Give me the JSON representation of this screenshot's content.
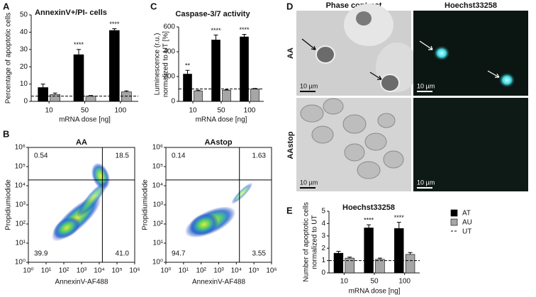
{
  "chart_data": [
    {
      "type": "bar",
      "panel": "A",
      "title": "AnnexinV+/PI- cells",
      "y_label": "Percentage of apoptotic cells",
      "x_label": "mRNA dose [ng]",
      "categories": [
        "10",
        "50",
        "100"
      ],
      "series": [
        {
          "color": "#000000",
          "values": [
            8,
            27,
            41
          ],
          "errors": [
            2,
            3,
            1
          ],
          "significance": [
            null,
            "****",
            "****"
          ]
        },
        {
          "color": "#a6a6a6",
          "values": [
            4,
            3,
            5.5
          ],
          "errors": [
            0.8,
            0.4,
            0.6
          ],
          "significance": [
            null,
            null,
            null
          ]
        }
      ],
      "reference_line": 3,
      "ylim": [
        0,
        50
      ],
      "yticks": [
        0,
        10,
        20,
        30,
        40,
        50
      ]
    },
    {
      "type": "bar",
      "panel": "C",
      "title": "Caspase-3/7 activity",
      "y_label": [
        "Luminescence (r.u.)",
        "normalized to UT [%]"
      ],
      "x_label": "mRNA dose [ng]",
      "categories": [
        "10",
        "50",
        "100"
      ],
      "series": [
        {
          "color": "#000000",
          "values": [
            220,
            495,
            520
          ],
          "errors": [
            30,
            40,
            20
          ],
          "significance": [
            "**",
            "****",
            "****"
          ]
        },
        {
          "color": "#a6a6a6",
          "values": [
            85,
            90,
            100
          ],
          "errors": [
            5,
            5,
            4
          ],
          "significance": [
            null,
            null,
            null
          ]
        }
      ],
      "reference_line": 100,
      "ylim": [
        0,
        600
      ],
      "yticks": [
        0,
        200,
        400,
        600
      ]
    },
    {
      "type": "bar",
      "panel": "E",
      "title": "Hoechst33258",
      "y_label": [
        "Number of apoptotic cells",
        "normalized to UT"
      ],
      "x_label": "mRNA dose [ng]",
      "categories": [
        "10",
        "50",
        "100"
      ],
      "series": [
        {
          "name": "AT",
          "color": "#000000",
          "values": [
            1.6,
            3.65,
            3.6
          ],
          "errors": [
            0.15,
            0.25,
            0.5
          ],
          "significance": [
            null,
            "****",
            "****"
          ]
        },
        {
          "name": "AU",
          "color": "#a6a6a6",
          "values": [
            1.2,
            1.1,
            1.5
          ],
          "errors": [
            0.08,
            0.1,
            0.15
          ],
          "significance": [
            null,
            null,
            null
          ]
        }
      ],
      "reference_line": {
        "name": "UT",
        "value": 1
      },
      "ylim": [
        0,
        5
      ],
      "yticks": [
        0,
        1,
        2,
        3,
        4,
        5
      ]
    },
    {
      "type": "flow",
      "panel": "B",
      "title": "AA",
      "x_label": "AnnexinV-AF488",
      "y_label": "Propidiumiodide",
      "log_scale": true,
      "quadrant_gate": {
        "x": 15000,
        "y": 20000
      },
      "quadrants": {
        "upper_left": 0.54,
        "upper_right": 18.5,
        "lower_left": 39.9,
        "lower_right": {
          "value": 41,
          "label": "41.0"
        }
      },
      "xlim": [
        1,
        1000000
      ],
      "ylim": [
        1,
        1000000
      ],
      "xticks": [
        {
          "value": 1,
          "label": "10⁰"
        },
        {
          "value": 10,
          "label": "10¹"
        },
        {
          "value": 100,
          "label": "10²"
        },
        {
          "value": 1000,
          "label": "10³"
        },
        {
          "value": 10000,
          "label": "10⁴"
        },
        {
          "value": 100000,
          "label": "10⁵"
        },
        {
          "value": 1000000,
          "label": "10⁶"
        }
      ],
      "yticks": [
        {
          "value": 1,
          "label": "10⁰"
        },
        {
          "value": 10,
          "label": "10¹"
        },
        {
          "value": 100,
          "label": "10²"
        },
        {
          "value": 1000,
          "label": "10³"
        },
        {
          "value": 10000,
          "label": "10⁴"
        },
        {
          "value": 100000,
          "label": "10⁵"
        },
        {
          "value": 1000000,
          "label": "10⁶"
        }
      ]
    },
    {
      "type": "flow",
      "title": "AAstop",
      "x_label": "AnnexinV-AF488",
      "y_label": "Propidiumiodide",
      "log_scale": true,
      "quadrant_gate": {
        "x": 15000,
        "y": 20000
      },
      "quadrants": {
        "upper_left": 0.14,
        "upper_right": 1.63,
        "lower_left": 94.7,
        "lower_right": 3.55
      },
      "xlim": [
        1,
        1000000
      ],
      "ylim": [
        1,
        1000000
      ],
      "xticks": [
        {
          "value": 1,
          "label": "10⁰"
        },
        {
          "value": 10,
          "label": "10¹"
        },
        {
          "value": 100,
          "label": "10²"
        },
        {
          "value": 1000,
          "label": "10³"
        },
        {
          "value": 10000,
          "label": "10⁴"
        },
        {
          "value": 100000,
          "label": "10⁵"
        },
        {
          "value": 1000000,
          "label": "10⁶"
        }
      ],
      "yticks": [
        {
          "value": 1,
          "label": "10⁰"
        },
        {
          "value": 10,
          "label": "10¹"
        },
        {
          "value": 100,
          "label": "10²"
        },
        {
          "value": 1000,
          "label": "10³"
        },
        {
          "value": 10000,
          "label": "10⁴"
        },
        {
          "value": 100000,
          "label": "10⁵"
        },
        {
          "value": 1000000,
          "label": "10⁶"
        }
      ]
    }
  ],
  "figure": {
    "panel": "D",
    "columns": [
      "Phase contrast",
      "Hoechst33258"
    ],
    "rows": [
      "AA",
      "AAstop"
    ],
    "scale_bar": "10 µm"
  }
}
